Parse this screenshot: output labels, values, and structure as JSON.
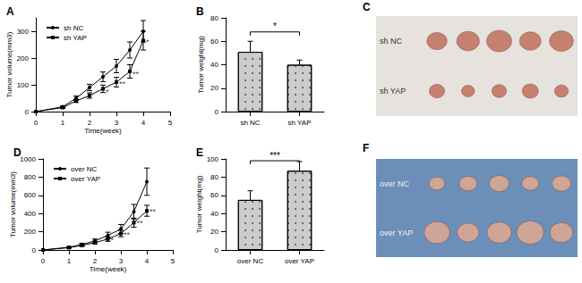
{
  "chart_data": [
    {
      "type": "line",
      "title": "A",
      "x_label": "Time(week)",
      "y_label": "Tumor volume(mm3)",
      "x": [
        0,
        1,
        1.5,
        2,
        2.5,
        3,
        3.5,
        4
      ],
      "series": [
        {
          "name": "sh NC",
          "color": "#000000",
          "marker": "circle",
          "values": [
            0,
            18,
            50,
            90,
            130,
            170,
            230,
            300
          ],
          "errors": [
            0,
            3,
            8,
            12,
            18,
            25,
            30,
            40
          ]
        },
        {
          "name": "sh YAP",
          "color": "#000000",
          "marker": "square",
          "values": [
            0,
            15,
            40,
            60,
            85,
            110,
            150,
            265
          ],
          "errors": [
            0,
            3,
            6,
            10,
            14,
            18,
            25,
            35
          ]
        }
      ],
      "xlim": [
        0,
        5
      ],
      "xticks": [
        0,
        1,
        2,
        3,
        4,
        5
      ],
      "ylim": [
        0,
        350
      ],
      "yticks": [
        0,
        100,
        200,
        300
      ],
      "legend": "upper left",
      "grid": false,
      "annotations": [
        {
          "x": 2.5,
          "y": 75,
          "text": "*"
        },
        {
          "x": 3,
          "y": 105,
          "text": "**"
        },
        {
          "x": 3.5,
          "y": 140,
          "text": "**"
        },
        {
          "x": 4,
          "y": 260,
          "text": "*"
        }
      ]
    },
    {
      "type": "bar",
      "title": "B",
      "y_label": "Tumor weight(mg)",
      "categories": [
        "sh NC",
        "sh YAP"
      ],
      "values": [
        51,
        40
      ],
      "errors": [
        9,
        4
      ],
      "color": "#cccccc",
      "ylim": [
        0,
        80
      ],
      "yticks": [
        0,
        20,
        40,
        60,
        80
      ],
      "grid": false,
      "bracket": {
        "y": 68,
        "label": "*"
      }
    },
    {
      "type": "line",
      "title": "D",
      "x_label": "Time(week)",
      "y_label": "Tumor volume(mm3)",
      "x": [
        0,
        1,
        1.5,
        2,
        2.5,
        3,
        3.5,
        4
      ],
      "series": [
        {
          "name": "over NC",
          "color": "#000000",
          "marker": "circle",
          "values": [
            0,
            30,
            60,
            100,
            160,
            230,
            420,
            750
          ],
          "errors": [
            0,
            8,
            15,
            20,
            35,
            50,
            80,
            150
          ]
        },
        {
          "name": "over YAP",
          "color": "#000000",
          "marker": "square",
          "values": [
            0,
            25,
            50,
            80,
            120,
            180,
            300,
            430
          ],
          "errors": [
            0,
            5,
            10,
            15,
            25,
            35,
            50,
            60
          ]
        }
      ],
      "xlim": [
        0,
        5
      ],
      "xticks": [
        0,
        1,
        2,
        3,
        4,
        5
      ],
      "ylim": [
        0,
        1000
      ],
      "yticks": [
        0,
        200,
        400,
        600,
        800,
        1000
      ],
      "legend": "upper left",
      "grid": false,
      "annotations": [
        {
          "x": 2.5,
          "y": 110,
          "text": "*"
        },
        {
          "x": 3,
          "y": 170,
          "text": "**"
        },
        {
          "x": 3.5,
          "y": 290,
          "text": "**"
        },
        {
          "x": 4,
          "y": 420,
          "text": "**"
        }
      ]
    },
    {
      "type": "bar",
      "title": "E",
      "y_label": "Tumor weight(mg)",
      "categories": [
        "over NC",
        "over YAP"
      ],
      "values": [
        55,
        87
      ],
      "errors": [
        10,
        10
      ],
      "color": "#cccccc",
      "ylim": [
        0,
        100
      ],
      "yticks": [
        0,
        20,
        40,
        60,
        80,
        100
      ],
      "grid": false,
      "bracket": {
        "y": 98,
        "label": "***"
      }
    }
  ],
  "photos": [
    {
      "title": "C",
      "rows": [
        "sh NC",
        "sh YAP"
      ],
      "counts": [
        5,
        5
      ]
    },
    {
      "title": "F",
      "rows": [
        "over NC",
        "over YAP"
      ],
      "counts": [
        5,
        5
      ]
    }
  ]
}
